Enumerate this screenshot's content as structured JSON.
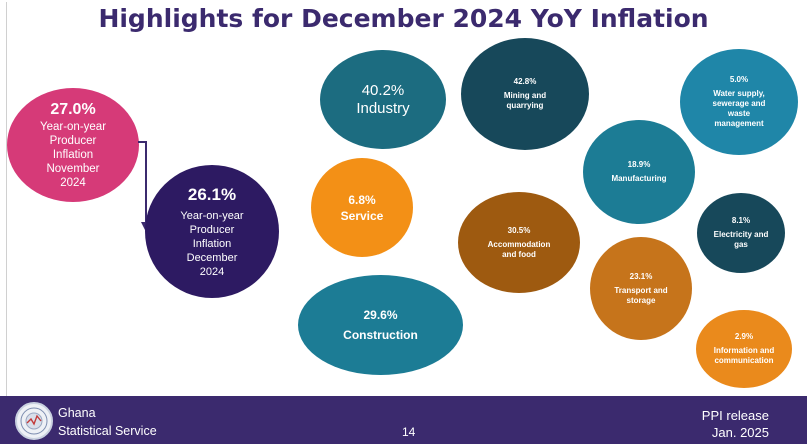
{
  "title": "Highlights for December 2024 YoY Inflation",
  "headline": {
    "november": {
      "value": "27.0%",
      "label_lines": [
        "Year-on-year",
        "Producer",
        "Inflation",
        "November",
        "2024"
      ]
    },
    "december": {
      "value": "26.1%",
      "label_lines": [
        "Year-on-year",
        "Producer",
        "Inflation",
        "December",
        "2024"
      ]
    }
  },
  "sectors": {
    "industry": {
      "value": "40.2%",
      "label": "Industry"
    },
    "service": {
      "value": "6.8%",
      "label": "Service"
    },
    "construction": {
      "value": "29.6%",
      "label": "Construction"
    }
  },
  "subsectors": {
    "mining": {
      "value": "42.8%",
      "label_lines": [
        "Mining and",
        "quarrying"
      ]
    },
    "accommodation": {
      "value": "30.5%",
      "label_lines": [
        "Accommodation",
        "and food"
      ]
    },
    "manufacturing": {
      "value": "18.9%",
      "label_lines": [
        "Manufacturing"
      ]
    },
    "transport": {
      "value": "23.1%",
      "label_lines": [
        "Transport and",
        "storage"
      ]
    },
    "water": {
      "value": "5.0%",
      "label_lines": [
        "Water supply,",
        "sewerage and",
        "waste",
        "management"
      ]
    },
    "electricity": {
      "value": "8.1%",
      "label_lines": [
        "Electricity and",
        "gas"
      ]
    },
    "information": {
      "value": "2.9%",
      "label_lines": [
        "Information and",
        "communication"
      ]
    }
  },
  "footer": {
    "org_line1": "Ghana",
    "org_line2": "Statistical Service",
    "page_number": "14",
    "release_line1": "PPI release",
    "release_line2": "Jan. 2025"
  },
  "colors": {
    "title": "#3b2a6e",
    "footer_bg": "#3b2a6e",
    "november_bubble": "#d63a78",
    "december_bubble": "#2d1a62",
    "teal": "#1c7c95",
    "dark_teal": "#17485a",
    "orange": "#f39016",
    "brown": "#9e5a10"
  },
  "icons": {
    "logo": "ghana-statistical-service-logo",
    "arrow": "down-arrow"
  }
}
